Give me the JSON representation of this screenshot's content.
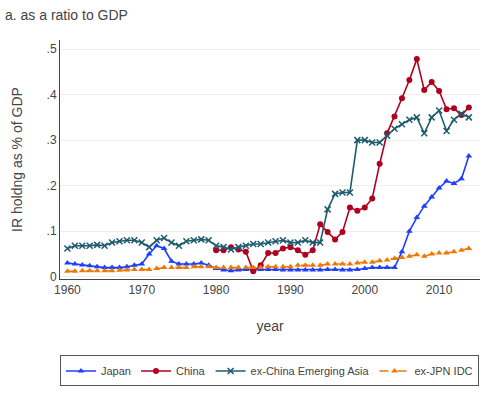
{
  "chart_data": {
    "type": "line",
    "title": "a. as a ratio to GDP",
    "x_label": "year",
    "y_label": "IR holdng as % of GDP",
    "xlim": [
      1959,
      2015.5
    ],
    "ylim": [
      -0.005,
      0.52
    ],
    "xticks": [
      1960,
      1970,
      1980,
      1990,
      2000,
      2010
    ],
    "yticks": [
      0,
      {
        "value": 0.1,
        "label": ".1"
      },
      {
        "value": 0.2,
        "label": ".2"
      },
      {
        "value": 0.3,
        "label": ".3"
      },
      {
        "value": 0.4,
        "label": ".4"
      },
      {
        "value": 0.5,
        "label": ".5"
      }
    ],
    "grid": "y",
    "legend": "bottom",
    "series": [
      {
        "name": "Japan",
        "color": "#1f3fff",
        "marker": "triangle",
        "line_style": "solid",
        "x": [
          1960,
          1961,
          1962,
          1963,
          1964,
          1965,
          1966,
          1967,
          1968,
          1969,
          1970,
          1971,
          1972,
          1973,
          1974,
          1975,
          1976,
          1977,
          1978,
          1979,
          1980,
          1981,
          1982,
          1983,
          1984,
          1985,
          1986,
          1987,
          1988,
          1989,
          1990,
          1991,
          1992,
          1993,
          1994,
          1995,
          1996,
          1997,
          1998,
          1999,
          2000,
          2001,
          2002,
          2003,
          2004,
          2005,
          2006,
          2007,
          2008,
          2009,
          2010,
          2011,
          2012,
          2013,
          2014
        ],
        "values": [
          0.03,
          0.028,
          0.026,
          0.024,
          0.022,
          0.02,
          0.02,
          0.02,
          0.022,
          0.025,
          0.028,
          0.05,
          0.068,
          0.062,
          0.034,
          0.028,
          0.028,
          0.028,
          0.03,
          0.025,
          0.018,
          0.015,
          0.013,
          0.015,
          0.016,
          0.016,
          0.016,
          0.016,
          0.016,
          0.015,
          0.015,
          0.015,
          0.015,
          0.015,
          0.015,
          0.016,
          0.016,
          0.015,
          0.015,
          0.016,
          0.018,
          0.02,
          0.02,
          0.02,
          0.02,
          0.055,
          0.1,
          0.13,
          0.155,
          0.175,
          0.195,
          0.21,
          0.205,
          0.215,
          0.265
        ]
      },
      {
        "name": "China",
        "color": "#b00020",
        "marker": "circle",
        "line_style": "solid",
        "x": [
          1980,
          1981,
          1982,
          1983,
          1984,
          1985,
          1986,
          1987,
          1988,
          1989,
          1990,
          1991,
          1992,
          1993,
          1994,
          1995,
          1996,
          1997,
          1998,
          1999,
          2000,
          2001,
          2002,
          2003,
          2004,
          2005,
          2006,
          2007,
          2008,
          2009,
          2010,
          2011,
          2012,
          2013,
          2014
        ],
        "values": [
          0.058,
          0.058,
          0.065,
          0.06,
          0.055,
          0.012,
          0.025,
          0.052,
          0.052,
          0.062,
          0.065,
          0.058,
          0.048,
          0.058,
          0.115,
          0.098,
          0.082,
          0.098,
          0.152,
          0.145,
          0.152,
          0.172,
          0.248,
          0.315,
          0.352,
          0.392,
          0.432,
          0.478,
          0.41,
          0.428,
          0.408,
          0.368,
          0.37,
          0.355,
          0.372
        ]
      },
      {
        "name": "ex-China Emerging Asia",
        "color": "#1d5c6e",
        "marker": "x",
        "line_style": "solid",
        "x": [
          1960,
          1961,
          1962,
          1963,
          1964,
          1965,
          1966,
          1967,
          1968,
          1969,
          1970,
          1971,
          1972,
          1973,
          1974,
          1975,
          1976,
          1977,
          1978,
          1979,
          1980,
          1981,
          1982,
          1983,
          1984,
          1985,
          1986,
          1987,
          1988,
          1989,
          1990,
          1991,
          1992,
          1993,
          1994,
          1995,
          1996,
          1997,
          1998,
          1999,
          2000,
          2001,
          2002,
          2003,
          2004,
          2005,
          2006,
          2007,
          2008,
          2009,
          2010,
          2011,
          2012,
          2013,
          2014
        ],
        "values": [
          0.062,
          0.068,
          0.068,
          0.068,
          0.07,
          0.068,
          0.075,
          0.078,
          0.08,
          0.08,
          0.075,
          0.065,
          0.08,
          0.085,
          0.075,
          0.068,
          0.078,
          0.08,
          0.082,
          0.08,
          0.068,
          0.065,
          0.06,
          0.065,
          0.068,
          0.072,
          0.072,
          0.075,
          0.078,
          0.08,
          0.075,
          0.075,
          0.08,
          0.075,
          0.075,
          0.148,
          0.182,
          0.185,
          0.185,
          0.3,
          0.3,
          0.295,
          0.295,
          0.31,
          0.325,
          0.335,
          0.345,
          0.35,
          0.315,
          0.35,
          0.365,
          0.32,
          0.345,
          0.358,
          0.35
        ]
      },
      {
        "name": "ex-JPN IDC",
        "color": "#f07800",
        "marker": "triangle",
        "line_style": "dashed",
        "x": [
          1960,
          1961,
          1962,
          1963,
          1964,
          1965,
          1966,
          1967,
          1968,
          1969,
          1970,
          1971,
          1972,
          1973,
          1974,
          1975,
          1976,
          1977,
          1978,
          1979,
          1980,
          1981,
          1982,
          1983,
          1984,
          1985,
          1986,
          1987,
          1988,
          1989,
          1990,
          1991,
          1992,
          1993,
          1994,
          1995,
          1996,
          1997,
          1998,
          1999,
          2000,
          2001,
          2002,
          2003,
          2004,
          2005,
          2006,
          2007,
          2008,
          2009,
          2010,
          2011,
          2012,
          2013,
          2014
        ],
        "values": [
          0.012,
          0.012,
          0.013,
          0.013,
          0.013,
          0.013,
          0.013,
          0.014,
          0.015,
          0.016,
          0.016,
          0.016,
          0.018,
          0.02,
          0.02,
          0.02,
          0.02,
          0.022,
          0.022,
          0.022,
          0.02,
          0.02,
          0.02,
          0.02,
          0.02,
          0.02,
          0.02,
          0.022,
          0.022,
          0.022,
          0.022,
          0.025,
          0.025,
          0.025,
          0.025,
          0.028,
          0.028,
          0.028,
          0.028,
          0.03,
          0.032,
          0.032,
          0.035,
          0.037,
          0.04,
          0.042,
          0.045,
          0.048,
          0.045,
          0.05,
          0.052,
          0.052,
          0.055,
          0.058,
          0.062
        ]
      }
    ]
  }
}
